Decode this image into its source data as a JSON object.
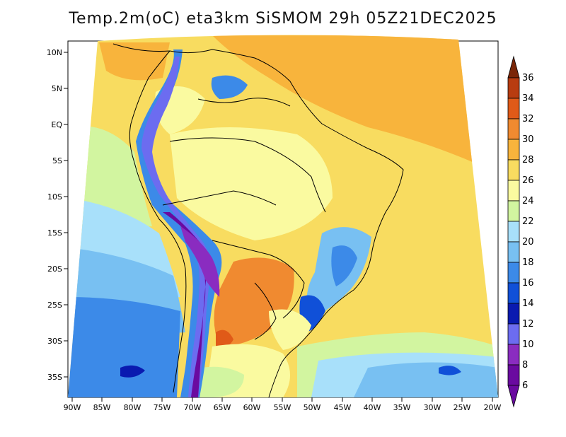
{
  "title": "Temp.2m(oC) eta3km SiSMOM 29h 05Z21DEC2025",
  "map": {
    "lat_labels": [
      "10N",
      "5N",
      "EQ",
      "5S",
      "10S",
      "15S",
      "20S",
      "25S",
      "30S",
      "35S"
    ],
    "lon_labels": [
      "90W",
      "85W",
      "80W",
      "75W",
      "70W",
      "65W",
      "60W",
      "55W",
      "50W",
      "45W",
      "40W",
      "35W",
      "30W",
      "25W",
      "20W"
    ]
  },
  "colorbar": {
    "labels": [
      "36",
      "34",
      "32",
      "30",
      "28",
      "26",
      "24",
      "22",
      "20",
      "18",
      "16",
      "14",
      "12",
      "10",
      "8",
      "6"
    ],
    "colors": {
      "c6": "#6a0aa0",
      "c8": "#8a2cc0",
      "c10": "#6c6cf0",
      "c12": "#0a1ab0",
      "c14": "#1050d8",
      "c16": "#3c8ae8",
      "c18": "#78c0f2",
      "c20": "#a8e0fa",
      "c22": "#d2f5a0",
      "c24": "#fafaa0",
      "c26": "#f8dc60",
      "c28": "#f8b43c",
      "c30": "#f08a30",
      "c32": "#e05a18",
      "c34": "#b83c10",
      "c36": "#7a2608"
    }
  }
}
